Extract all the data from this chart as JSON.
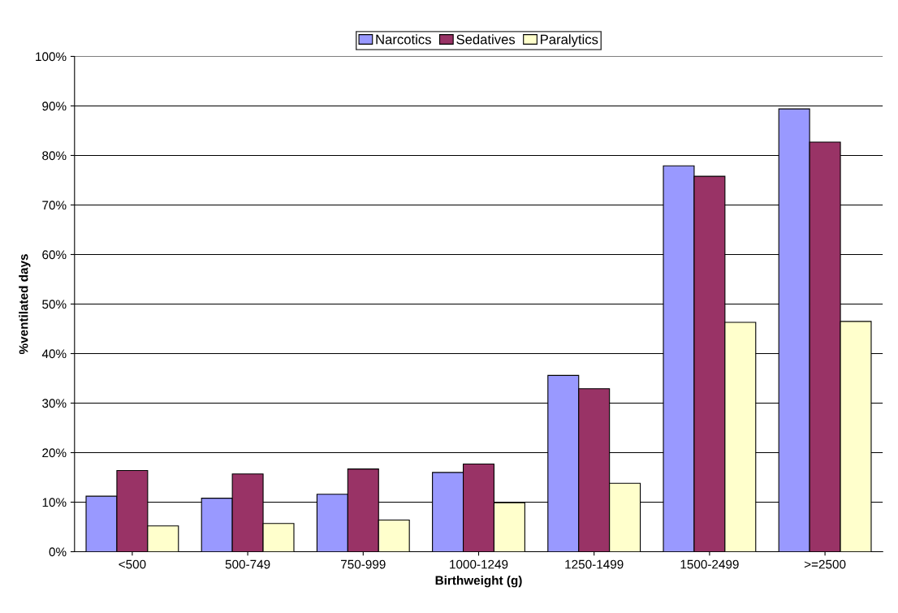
{
  "chart_data": {
    "type": "bar",
    "xlabel": "Birthweight (g)",
    "ylabel": "%ventilated days",
    "categories": [
      "<500",
      "500-749",
      "750-999",
      "1000-1249",
      "1250-1499",
      "1500-2499",
      ">=2500"
    ],
    "series": [
      {
        "name": "Narcotics",
        "color": "#9999ff",
        "values": [
          11.2,
          10.8,
          11.6,
          16.0,
          35.6,
          77.9,
          89.4
        ]
      },
      {
        "name": "Sedatives",
        "color": "#993366",
        "values": [
          16.4,
          15.7,
          16.7,
          17.7,
          32.9,
          75.8,
          82.7
        ]
      },
      {
        "name": "Paralytics",
        "color": "#ffffcc",
        "values": [
          5.2,
          5.7,
          6.4,
          9.9,
          13.8,
          46.3,
          46.5
        ]
      }
    ],
    "ylim": [
      0,
      100
    ],
    "yticks": [
      {
        "value": 0,
        "label": "0%"
      },
      {
        "value": 10,
        "label": "10%"
      },
      {
        "value": 20,
        "label": "20%"
      },
      {
        "value": 30,
        "label": "30%"
      },
      {
        "value": 40,
        "label": "40%"
      },
      {
        "value": 50,
        "label": "50%"
      },
      {
        "value": 60,
        "label": "60%"
      },
      {
        "value": 70,
        "label": "70%"
      },
      {
        "value": 80,
        "label": "80%"
      },
      {
        "value": 90,
        "label": "90%"
      },
      {
        "value": 100,
        "label": "100%"
      }
    ],
    "grid": "y",
    "legend": "top"
  }
}
